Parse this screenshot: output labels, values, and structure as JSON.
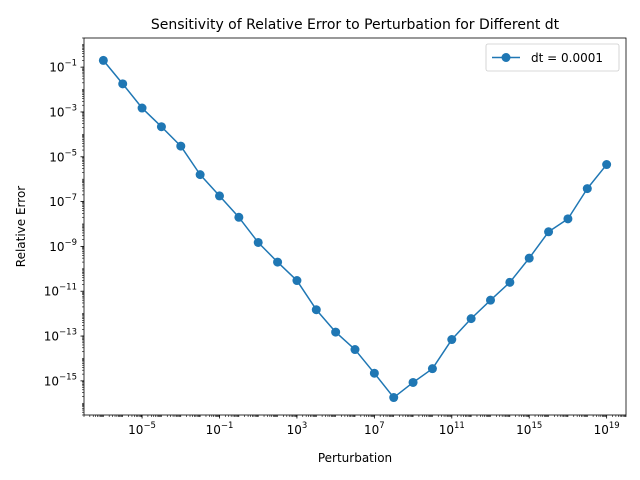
{
  "chart_data": {
    "type": "line",
    "title": "Sensitivity of Relative Error to Perturbation for Different dt",
    "xlabel": "Perturbation",
    "ylabel": "Relative Error",
    "xscale": "log",
    "yscale": "log",
    "xlim": [
      1e-08,
      1e+20
    ],
    "ylim": [
      3e-17,
      2
    ],
    "x_ticks": [
      {
        "value": 1e-05,
        "base": "10",
        "exp": "−5"
      },
      {
        "value": 0.1,
        "base": "10",
        "exp": "−1"
      },
      {
        "value": 1000.0,
        "base": "10",
        "exp": "3"
      },
      {
        "value": 10000000.0,
        "base": "10",
        "exp": "7"
      },
      {
        "value": 100000000000.0,
        "base": "10",
        "exp": "11"
      },
      {
        "value": 1000000000000000.0,
        "base": "10",
        "exp": "15"
      },
      {
        "value": 1e+19,
        "base": "10",
        "exp": "19"
      }
    ],
    "y_ticks": [
      {
        "value": 0.1,
        "base": "10",
        "exp": "−1"
      },
      {
        "value": 0.001,
        "base": "10",
        "exp": "−3"
      },
      {
        "value": 1e-05,
        "base": "10",
        "exp": "−5"
      },
      {
        "value": 1e-07,
        "base": "10",
        "exp": "−7"
      },
      {
        "value": 1e-09,
        "base": "10",
        "exp": "−9"
      },
      {
        "value": 1e-11,
        "base": "10",
        "exp": "−11"
      },
      {
        "value": 1e-13,
        "base": "10",
        "exp": "−13"
      },
      {
        "value": 1e-15,
        "base": "10",
        "exp": "−15"
      }
    ],
    "grid": false,
    "legend_position": "top-right",
    "series": [
      {
        "name": "dt = 0.0001",
        "color": "#1f77b4",
        "x": [
          1e-07,
          1e-06,
          1e-05,
          0.0001,
          0.001,
          0.01,
          0.1,
          1.0,
          10.0,
          100.0,
          1000.0,
          10000.0,
          100000.0,
          1000000.0,
          10000000.0,
          100000000.0,
          1000000000.0,
          10000000000.0,
          100000000000.0,
          1000000000000.0,
          10000000000000.0,
          100000000000000.0,
          1000000000000000.0,
          1e+16,
          1e+17,
          1e+18,
          1e+19
        ],
        "y": [
          0.2,
          0.018,
          0.0015,
          0.00022,
          3e-05,
          1.6e-06,
          1.8e-07,
          2e-08,
          1.5e-09,
          2e-10,
          3e-11,
          1.5e-12,
          1.5e-13,
          2.5e-14,
          2.2e-15,
          1.8e-16,
          8.5e-16,
          3.5e-15,
          7e-14,
          6e-13,
          4e-12,
          2.5e-11,
          3e-10,
          4.5e-09,
          1.7e-08,
          3.8e-07,
          4.5e-06
        ]
      }
    ]
  }
}
